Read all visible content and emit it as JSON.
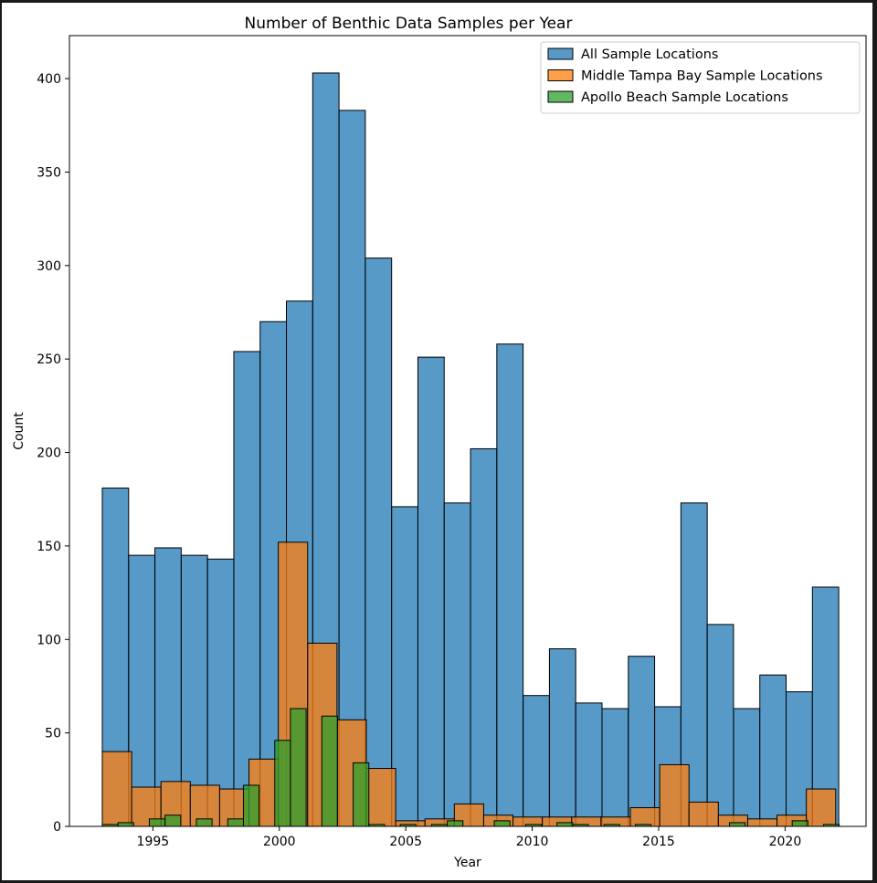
{
  "chart_data": {
    "type": "bar",
    "title": "Number of Benthic Data Samples per Year",
    "xlabel": "Year",
    "ylabel": "Count",
    "xlim": [
      1991.7,
      2023.2
    ],
    "ylim": [
      0,
      423
    ],
    "x_ticks": [
      1995,
      2000,
      2005,
      2010,
      2015,
      2020
    ],
    "y_ticks": [
      0,
      50,
      100,
      150,
      200,
      250,
      300,
      350,
      400
    ],
    "grid": false,
    "legend_position": "top-right",
    "series": [
      {
        "name": "All Sample Locations",
        "color": "#1f77b4",
        "bin_width": 1.04,
        "bins": [
          {
            "x": 1993.0,
            "value": 181
          },
          {
            "x": 1994.04,
            "value": 145
          },
          {
            "x": 1995.08,
            "value": 149
          },
          {
            "x": 1996.12,
            "value": 145
          },
          {
            "x": 1997.16,
            "value": 143
          },
          {
            "x": 1998.2,
            "value": 254
          },
          {
            "x": 1999.24,
            "value": 270
          },
          {
            "x": 2000.28,
            "value": 281
          },
          {
            "x": 2001.32,
            "value": 403
          },
          {
            "x": 2002.36,
            "value": 383
          },
          {
            "x": 2003.4,
            "value": 304
          },
          {
            "x": 2004.44,
            "value": 171
          },
          {
            "x": 2005.48,
            "value": 251
          },
          {
            "x": 2006.52,
            "value": 173
          },
          {
            "x": 2007.56,
            "value": 202
          },
          {
            "x": 2008.6,
            "value": 258
          },
          {
            "x": 2009.64,
            "value": 70
          },
          {
            "x": 2010.68,
            "value": 95
          },
          {
            "x": 2011.72,
            "value": 66
          },
          {
            "x": 2012.76,
            "value": 63
          },
          {
            "x": 2013.8,
            "value": 91
          },
          {
            "x": 2014.84,
            "value": 64
          },
          {
            "x": 2015.88,
            "value": 173
          },
          {
            "x": 2016.92,
            "value": 108
          },
          {
            "x": 2017.96,
            "value": 63
          },
          {
            "x": 2019.0,
            "value": 81
          },
          {
            "x": 2020.04,
            "value": 72
          },
          {
            "x": 2021.08,
            "value": 128
          }
        ]
      },
      {
        "name": "Middle Tampa Bay Sample Locations",
        "color": "#ff7f0e",
        "bin_width": 1.16,
        "bins": [
          {
            "x": 1993.0,
            "value": 40
          },
          {
            "x": 1994.16,
            "value": 21
          },
          {
            "x": 1995.32,
            "value": 24
          },
          {
            "x": 1996.48,
            "value": 22
          },
          {
            "x": 1997.64,
            "value": 20
          },
          {
            "x": 1998.8,
            "value": 36
          },
          {
            "x": 1999.96,
            "value": 152
          },
          {
            "x": 2001.12,
            "value": 98
          },
          {
            "x": 2002.28,
            "value": 57
          },
          {
            "x": 2003.44,
            "value": 31
          },
          {
            "x": 2004.6,
            "value": 3
          },
          {
            "x": 2005.76,
            "value": 4
          },
          {
            "x": 2006.92,
            "value": 12
          },
          {
            "x": 2008.08,
            "value": 6
          },
          {
            "x": 2009.24,
            "value": 5
          },
          {
            "x": 2010.4,
            "value": 5
          },
          {
            "x": 2011.56,
            "value": 5
          },
          {
            "x": 2012.72,
            "value": 5
          },
          {
            "x": 2013.88,
            "value": 10
          },
          {
            "x": 2015.04,
            "value": 33
          },
          {
            "x": 2016.2,
            "value": 13
          },
          {
            "x": 2017.36,
            "value": 6
          },
          {
            "x": 2018.52,
            "value": 4
          },
          {
            "x": 2019.68,
            "value": 6
          },
          {
            "x": 2020.84,
            "value": 20
          }
        ]
      },
      {
        "name": "Apollo Beach Sample Locations",
        "color": "#2ca02c",
        "bin_width": 0.62,
        "bins": [
          {
            "x": 1993.0,
            "value": 1
          },
          {
            "x": 1993.62,
            "value": 2
          },
          {
            "x": 1994.86,
            "value": 4
          },
          {
            "x": 1995.48,
            "value": 6
          },
          {
            "x": 1996.72,
            "value": 4
          },
          {
            "x": 1997.96,
            "value": 4
          },
          {
            "x": 1998.58,
            "value": 22
          },
          {
            "x": 1999.82,
            "value": 46
          },
          {
            "x": 2000.44,
            "value": 63
          },
          {
            "x": 2001.68,
            "value": 59
          },
          {
            "x": 2002.92,
            "value": 34
          },
          {
            "x": 2003.54,
            "value": 1
          },
          {
            "x": 2004.78,
            "value": 1
          },
          {
            "x": 2006.02,
            "value": 1
          },
          {
            "x": 2006.64,
            "value": 3
          },
          {
            "x": 2008.5,
            "value": 3
          },
          {
            "x": 2009.74,
            "value": 1
          },
          {
            "x": 2010.98,
            "value": 2
          },
          {
            "x": 2011.6,
            "value": 1
          },
          {
            "x": 2012.84,
            "value": 1
          },
          {
            "x": 2014.08,
            "value": 1
          },
          {
            "x": 2017.8,
            "value": 2
          },
          {
            "x": 2020.28,
            "value": 3
          },
          {
            "x": 2021.52,
            "value": 1
          }
        ]
      }
    ]
  }
}
